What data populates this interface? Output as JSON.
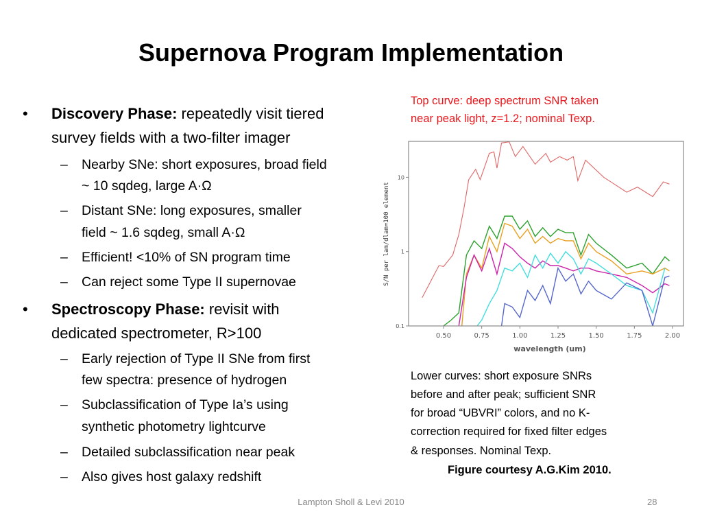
{
  "slide": {
    "title": "Supernova Program Implementation",
    "bullets": [
      {
        "bullet_glyph": "•",
        "bold": "Discovery Phase:",
        "lines": [
          " repeatedly visit tiered",
          "survey fields with a two-filter imager"
        ],
        "subs": [
          {
            "dash": "–",
            "lines": [
              "Nearby SNe: short exposures, broad field",
              "~ 10 sqdeg, large A·Ω"
            ]
          },
          {
            "dash": "–",
            "lines": [
              "Distant SNe:  long exposures,  smaller",
              "field  ~ 1.6 sqdeg,  small A·Ω"
            ]
          },
          {
            "dash": "–",
            "lines": [
              "Efficient!  <10% of SN program time"
            ]
          },
          {
            "dash": "–",
            "lines": [
              "Can reject some Type II supernovae"
            ]
          }
        ]
      },
      {
        "bullet_glyph": "•",
        "bold": "Spectroscopy Phase:",
        "lines": [
          " revisit with",
          "dedicated spectrometer, R>100"
        ],
        "subs": [
          {
            "dash": "–",
            "lines": [
              "Early rejection of Type II SNe from  first",
              "few spectra: presence of hydrogen"
            ]
          },
          {
            "dash": "–",
            "lines": [
              "Subclassification of Type Ia’s using",
              "synthetic photometry lightcurve"
            ]
          },
          {
            "dash": "–",
            "lines": [
              "Detailed subclassification near peak"
            ]
          },
          {
            "dash": "–",
            "lines": [
              "Also gives host galaxy redshift"
            ]
          }
        ]
      }
    ],
    "top_note": [
      "Top curve:  deep spectrum SNR taken",
      "near peak light, z=1.2; nominal Texp."
    ],
    "bottom_note": [
      "Lower curves:  short exposure SNRs",
      "before and after peak;  sufficient SNR",
      "for broad “UBVRI” colors, and no K-",
      "correction required for fixed filter edges",
      "& responses.  Nominal Texp."
    ],
    "credit": "Figure courtesy A.G.Kim 2010.",
    "footer": "Lampton Sholl & Levi 2010",
    "page_number": "28",
    "colors": {
      "note_red": "#e8161b",
      "footer_gray": "#888888"
    }
  },
  "chart_data": {
    "type": "line",
    "xlabel": "wavelength (um)",
    "ylabel": "S/N per lam/dlam=100 element",
    "xlim": [
      0.28,
      2.07
    ],
    "ylim": [
      0.1,
      30
    ],
    "yscale": "log",
    "xticks": [
      "0.50",
      "0.75",
      "1.00",
      "1.25",
      "1.50",
      "1.75",
      "2.00"
    ],
    "yticks": [
      "0.1",
      "1",
      "10"
    ],
    "grid": false,
    "series": [
      {
        "color": "#e06666",
        "x": [
          0.36,
          0.47,
          0.5,
          0.56,
          0.6,
          0.635,
          0.665,
          0.71,
          0.74,
          0.8,
          0.83,
          0.85,
          0.88,
          0.93,
          0.97,
          1.02,
          1.1,
          1.17,
          1.2,
          1.26,
          1.31,
          1.35,
          1.38,
          1.43,
          1.55,
          1.7,
          1.77,
          1.87,
          1.94,
          1.98
        ],
        "y": [
          0.24,
          0.65,
          0.63,
          0.9,
          1.7,
          4,
          9.3,
          12.8,
          9.3,
          21,
          22,
          13.3,
          29,
          30,
          19,
          26,
          15,
          21,
          16,
          19,
          17,
          19,
          9,
          17,
          10,
          6.3,
          7.4,
          5.5,
          8.7,
          8.1
        ]
      },
      {
        "color": "#2ca02c",
        "x": [
          0.5,
          0.55,
          0.6,
          0.65,
          0.7,
          0.75,
          0.8,
          0.85,
          0.9,
          0.95,
          1.0,
          1.05,
          1.1,
          1.15,
          1.2,
          1.25,
          1.3,
          1.35,
          1.4,
          1.45,
          1.5,
          1.6,
          1.7,
          1.8,
          1.87,
          1.95,
          1.98
        ],
        "y": [
          0.1,
          0.12,
          0.15,
          0.9,
          1.4,
          1.1,
          2.2,
          1.5,
          3.0,
          3.0,
          2.0,
          2.6,
          1.6,
          2.1,
          1.6,
          2.0,
          1.8,
          1.8,
          0.9,
          1.7,
          1.3,
          0.9,
          0.6,
          0.7,
          0.5,
          0.85,
          0.75
        ]
      },
      {
        "color": "#e8a020",
        "x": [
          0.62,
          0.65,
          0.7,
          0.75,
          0.8,
          0.85,
          0.9,
          0.95,
          1.0,
          1.05,
          1.1,
          1.15,
          1.2,
          1.25,
          1.3,
          1.35,
          1.4,
          1.45,
          1.5,
          1.6,
          1.7,
          1.8,
          1.87,
          1.95,
          1.98
        ],
        "y": [
          0.1,
          0.5,
          0.9,
          0.6,
          1.6,
          1.0,
          2.4,
          2.2,
          1.5,
          2.0,
          1.3,
          1.6,
          1.3,
          1.5,
          1.4,
          1.4,
          0.8,
          1.3,
          1.0,
          0.75,
          0.5,
          0.55,
          0.5,
          0.6,
          0.55
        ]
      },
      {
        "color": "#cc22aa",
        "x": [
          0.6,
          0.65,
          0.7,
          0.75,
          0.8,
          0.85,
          0.9,
          0.95,
          1.0,
          1.05,
          1.1,
          1.15,
          1.2,
          1.25,
          1.3,
          1.35,
          1.4,
          1.45,
          1.5,
          1.6,
          1.7,
          1.8,
          1.87,
          1.95,
          1.98
        ],
        "y": [
          0.1,
          0.45,
          0.9,
          0.55,
          1.1,
          0.5,
          1.3,
          1.1,
          0.85,
          0.7,
          0.6,
          0.75,
          0.65,
          0.65,
          0.6,
          0.55,
          0.6,
          0.6,
          0.55,
          0.5,
          0.45,
          0.35,
          0.28,
          0.37,
          0.35
        ]
      },
      {
        "color": "#44dddd",
        "x": [
          0.72,
          0.75,
          0.8,
          0.85,
          0.9,
          0.95,
          1.0,
          1.05,
          1.1,
          1.15,
          1.2,
          1.25,
          1.3,
          1.35,
          1.4,
          1.45,
          1.5,
          1.6,
          1.7,
          1.8,
          1.87,
          1.95
        ],
        "y": [
          0.1,
          0.12,
          0.2,
          0.3,
          0.6,
          0.55,
          0.7,
          0.45,
          0.9,
          0.6,
          0.95,
          0.7,
          1.0,
          0.8,
          0.5,
          0.8,
          0.7,
          0.5,
          0.35,
          0.3,
          0.15,
          0.6
        ]
      },
      {
        "color": "#5566cc",
        "x": [
          0.88,
          0.9,
          0.95,
          1.0,
          1.05,
          1.1,
          1.15,
          1.2,
          1.25,
          1.3,
          1.35,
          1.4,
          1.45,
          1.5,
          1.6,
          1.7,
          1.8,
          1.87,
          1.95,
          1.98
        ],
        "y": [
          0.1,
          0.2,
          0.18,
          0.13,
          0.3,
          0.22,
          0.35,
          0.2,
          0.6,
          0.4,
          0.5,
          0.27,
          0.4,
          0.3,
          0.23,
          0.38,
          0.3,
          0.1,
          0.45,
          0.47
        ]
      }
    ]
  }
}
